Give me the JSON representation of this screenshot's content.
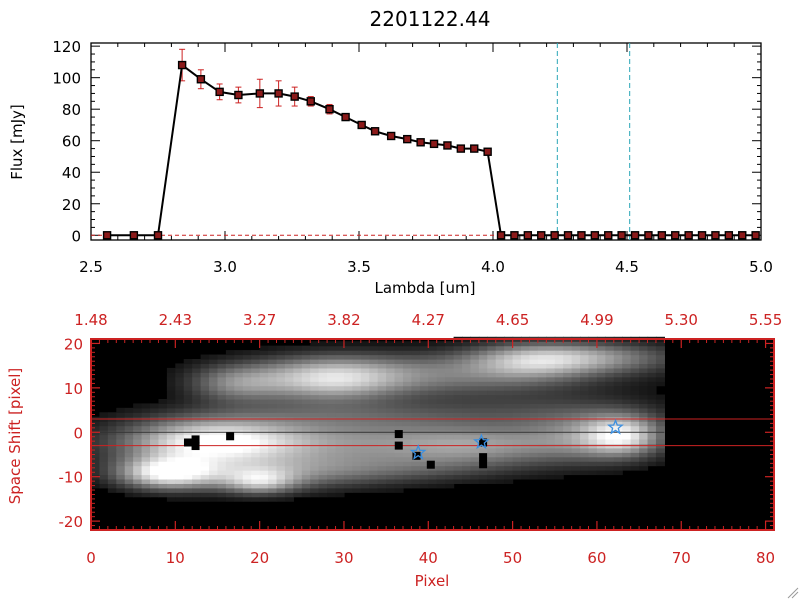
{
  "title": "2201122.44",
  "chart_data": [
    {
      "type": "line",
      "name": "spectrum",
      "xlabel": "Lambda [um]",
      "ylabel": "Flux [mJy]",
      "xlim": [
        2.5,
        5.0
      ],
      "ylim": [
        -3,
        122
      ],
      "xticks": [
        2.5,
        3.0,
        3.5,
        4.0,
        4.5,
        5.0
      ],
      "xtick_labels": [
        "2.5",
        "3.0",
        "3.5",
        "4.0",
        "4.5",
        "5.0"
      ],
      "yticks": [
        0,
        20,
        40,
        60,
        80,
        100,
        120
      ],
      "ytick_labels": [
        "0",
        "20",
        "40",
        "60",
        "80",
        "100",
        "120"
      ],
      "vlines": [
        4.24,
        4.51
      ],
      "colors": {
        "line": "#000000",
        "marker_edge": "#000000",
        "marker_fill": "#8b1a1a",
        "error": "#cc2222",
        "vline": "#2aa7b8",
        "zero_line": "#cc2222"
      },
      "series": [
        {
          "name": "flux",
          "x": [
            2.56,
            2.66,
            2.75,
            2.84,
            2.91,
            2.98,
            3.05,
            3.13,
            3.2,
            3.26,
            3.32,
            3.39,
            3.45,
            3.51,
            3.56,
            3.62,
            3.68,
            3.73,
            3.78,
            3.83,
            3.88,
            3.93,
            3.98,
            4.03,
            4.08,
            4.13,
            4.18,
            4.23,
            4.28,
            4.33,
            4.38,
            4.43,
            4.48,
            4.53,
            4.58,
            4.63,
            4.68,
            4.73,
            4.78,
            4.83,
            4.88,
            4.93,
            4.98
          ],
          "y": [
            0,
            0,
            0,
            108,
            99,
            91,
            89,
            90,
            90,
            88,
            85,
            80,
            75,
            70,
            66,
            63,
            61,
            59,
            58,
            57,
            55,
            55,
            53,
            0,
            0,
            0,
            0,
            0,
            0,
            0,
            0,
            0,
            0,
            0,
            0,
            0,
            0,
            0,
            0,
            0,
            0,
            0,
            0
          ],
          "yerr": [
            0,
            0,
            0,
            10,
            6,
            5,
            5,
            9,
            8,
            6,
            3,
            3,
            1.5,
            1.5,
            1.5,
            1,
            1,
            1,
            1,
            1,
            1,
            1,
            1,
            0,
            0,
            0,
            0,
            0,
            0,
            0,
            0,
            0,
            0,
            0,
            0,
            0,
            0,
            0,
            0,
            0,
            0,
            0,
            0
          ]
        }
      ]
    },
    {
      "type": "heatmap",
      "name": "spectral-image",
      "xlabel": "Pixel",
      "ylabel": "Space Shift [pixel]",
      "xlim": [
        0,
        81
      ],
      "ylim": [
        -22,
        21
      ],
      "xticks": [
        0,
        10,
        20,
        30,
        40,
        50,
        60,
        70,
        80
      ],
      "xtick_labels": [
        "0",
        "10",
        "20",
        "30",
        "40",
        "50",
        "60",
        "70",
        "80"
      ],
      "yticks": [
        -20,
        -10,
        0,
        10,
        20
      ],
      "ytick_labels": [
        "-20",
        "-10",
        "0",
        "10",
        "20"
      ],
      "top_ticks": [
        0,
        10,
        20,
        30,
        40,
        50,
        60,
        70,
        80
      ],
      "top_tick_labels": [
        "1.48",
        "2.43",
        "3.27",
        "3.82",
        "4.27",
        "4.65",
        "4.99",
        "5.30",
        "5.55"
      ],
      "image_x_range": [
        0,
        68
      ],
      "hlines": [
        3,
        -3
      ],
      "center_line": 0,
      "colors": {
        "frame": "#cc2222",
        "hline": "#cc2222",
        "center_line": "#333333",
        "star": "#3b8fe0",
        "bad_pixel": "#000000"
      },
      "stars": [
        {
          "x": 38.8,
          "y": -4.6
        },
        {
          "x": 46.3,
          "y": -2.2
        },
        {
          "x": 62.2,
          "y": 1.1
        }
      ],
      "bad_pixels": [
        {
          "x": 11.5,
          "y": -2.3
        },
        {
          "x": 12.4,
          "y": -1.6
        },
        {
          "x": 12.4,
          "y": -3.1
        },
        {
          "x": 16.5,
          "y": -0.9
        },
        {
          "x": 36.5,
          "y": -0.4
        },
        {
          "x": 36.5,
          "y": -3.0
        },
        {
          "x": 38.6,
          "y": -5.3
        },
        {
          "x": 40.3,
          "y": -7.3
        },
        {
          "x": 46.5,
          "y": -2.3
        },
        {
          "x": 46.5,
          "y": -5.6
        },
        {
          "x": 46.5,
          "y": -7.2
        }
      ],
      "emission_blobs": [
        {
          "cx": 14,
          "cy": -2,
          "sx": 7,
          "sy": 3.5,
          "amp": 0.75
        },
        {
          "cx": 30,
          "cy": -2,
          "sx": 16,
          "sy": 3.5,
          "amp": 0.5
        },
        {
          "cx": 46,
          "cy": -3,
          "sx": 7,
          "sy": 3,
          "amp": 0.3
        },
        {
          "cx": 60,
          "cy": -1,
          "sx": 6,
          "sy": 4,
          "amp": 0.45
        },
        {
          "cx": 63,
          "cy": -0.5,
          "sx": 3,
          "sy": 3,
          "amp": 0.55
        },
        {
          "cx": 9,
          "cy": -9,
          "sx": 4,
          "sy": 2.5,
          "amp": 0.8
        },
        {
          "cx": 20,
          "cy": -9,
          "sx": 10,
          "sy": 3,
          "amp": 0.45
        },
        {
          "cx": 20,
          "cy": -11,
          "sx": 3,
          "sy": 2,
          "amp": 0.5
        },
        {
          "cx": 38,
          "cy": -8,
          "sx": 10,
          "sy": 2.5,
          "amp": 0.22
        },
        {
          "cx": 28,
          "cy": 12,
          "sx": 6,
          "sy": 3.5,
          "amp": 0.6
        },
        {
          "cx": 40,
          "cy": 13,
          "sx": 14,
          "sy": 3.5,
          "amp": 0.45
        },
        {
          "cx": 17,
          "cy": 11,
          "sx": 4,
          "sy": 3,
          "amp": 0.4
        },
        {
          "cx": 58,
          "cy": 17,
          "sx": 8,
          "sy": 2.5,
          "amp": 0.55
        },
        {
          "cx": 52,
          "cy": 16,
          "sx": 5,
          "sy": 3,
          "amp": 0.3
        },
        {
          "cx": 55,
          "cy": 5,
          "sx": 10,
          "sy": 3,
          "amp": 0.15
        },
        {
          "cx": 30,
          "cy": 4,
          "sx": 14,
          "sy": 2.5,
          "amp": 0.25
        }
      ]
    }
  ]
}
